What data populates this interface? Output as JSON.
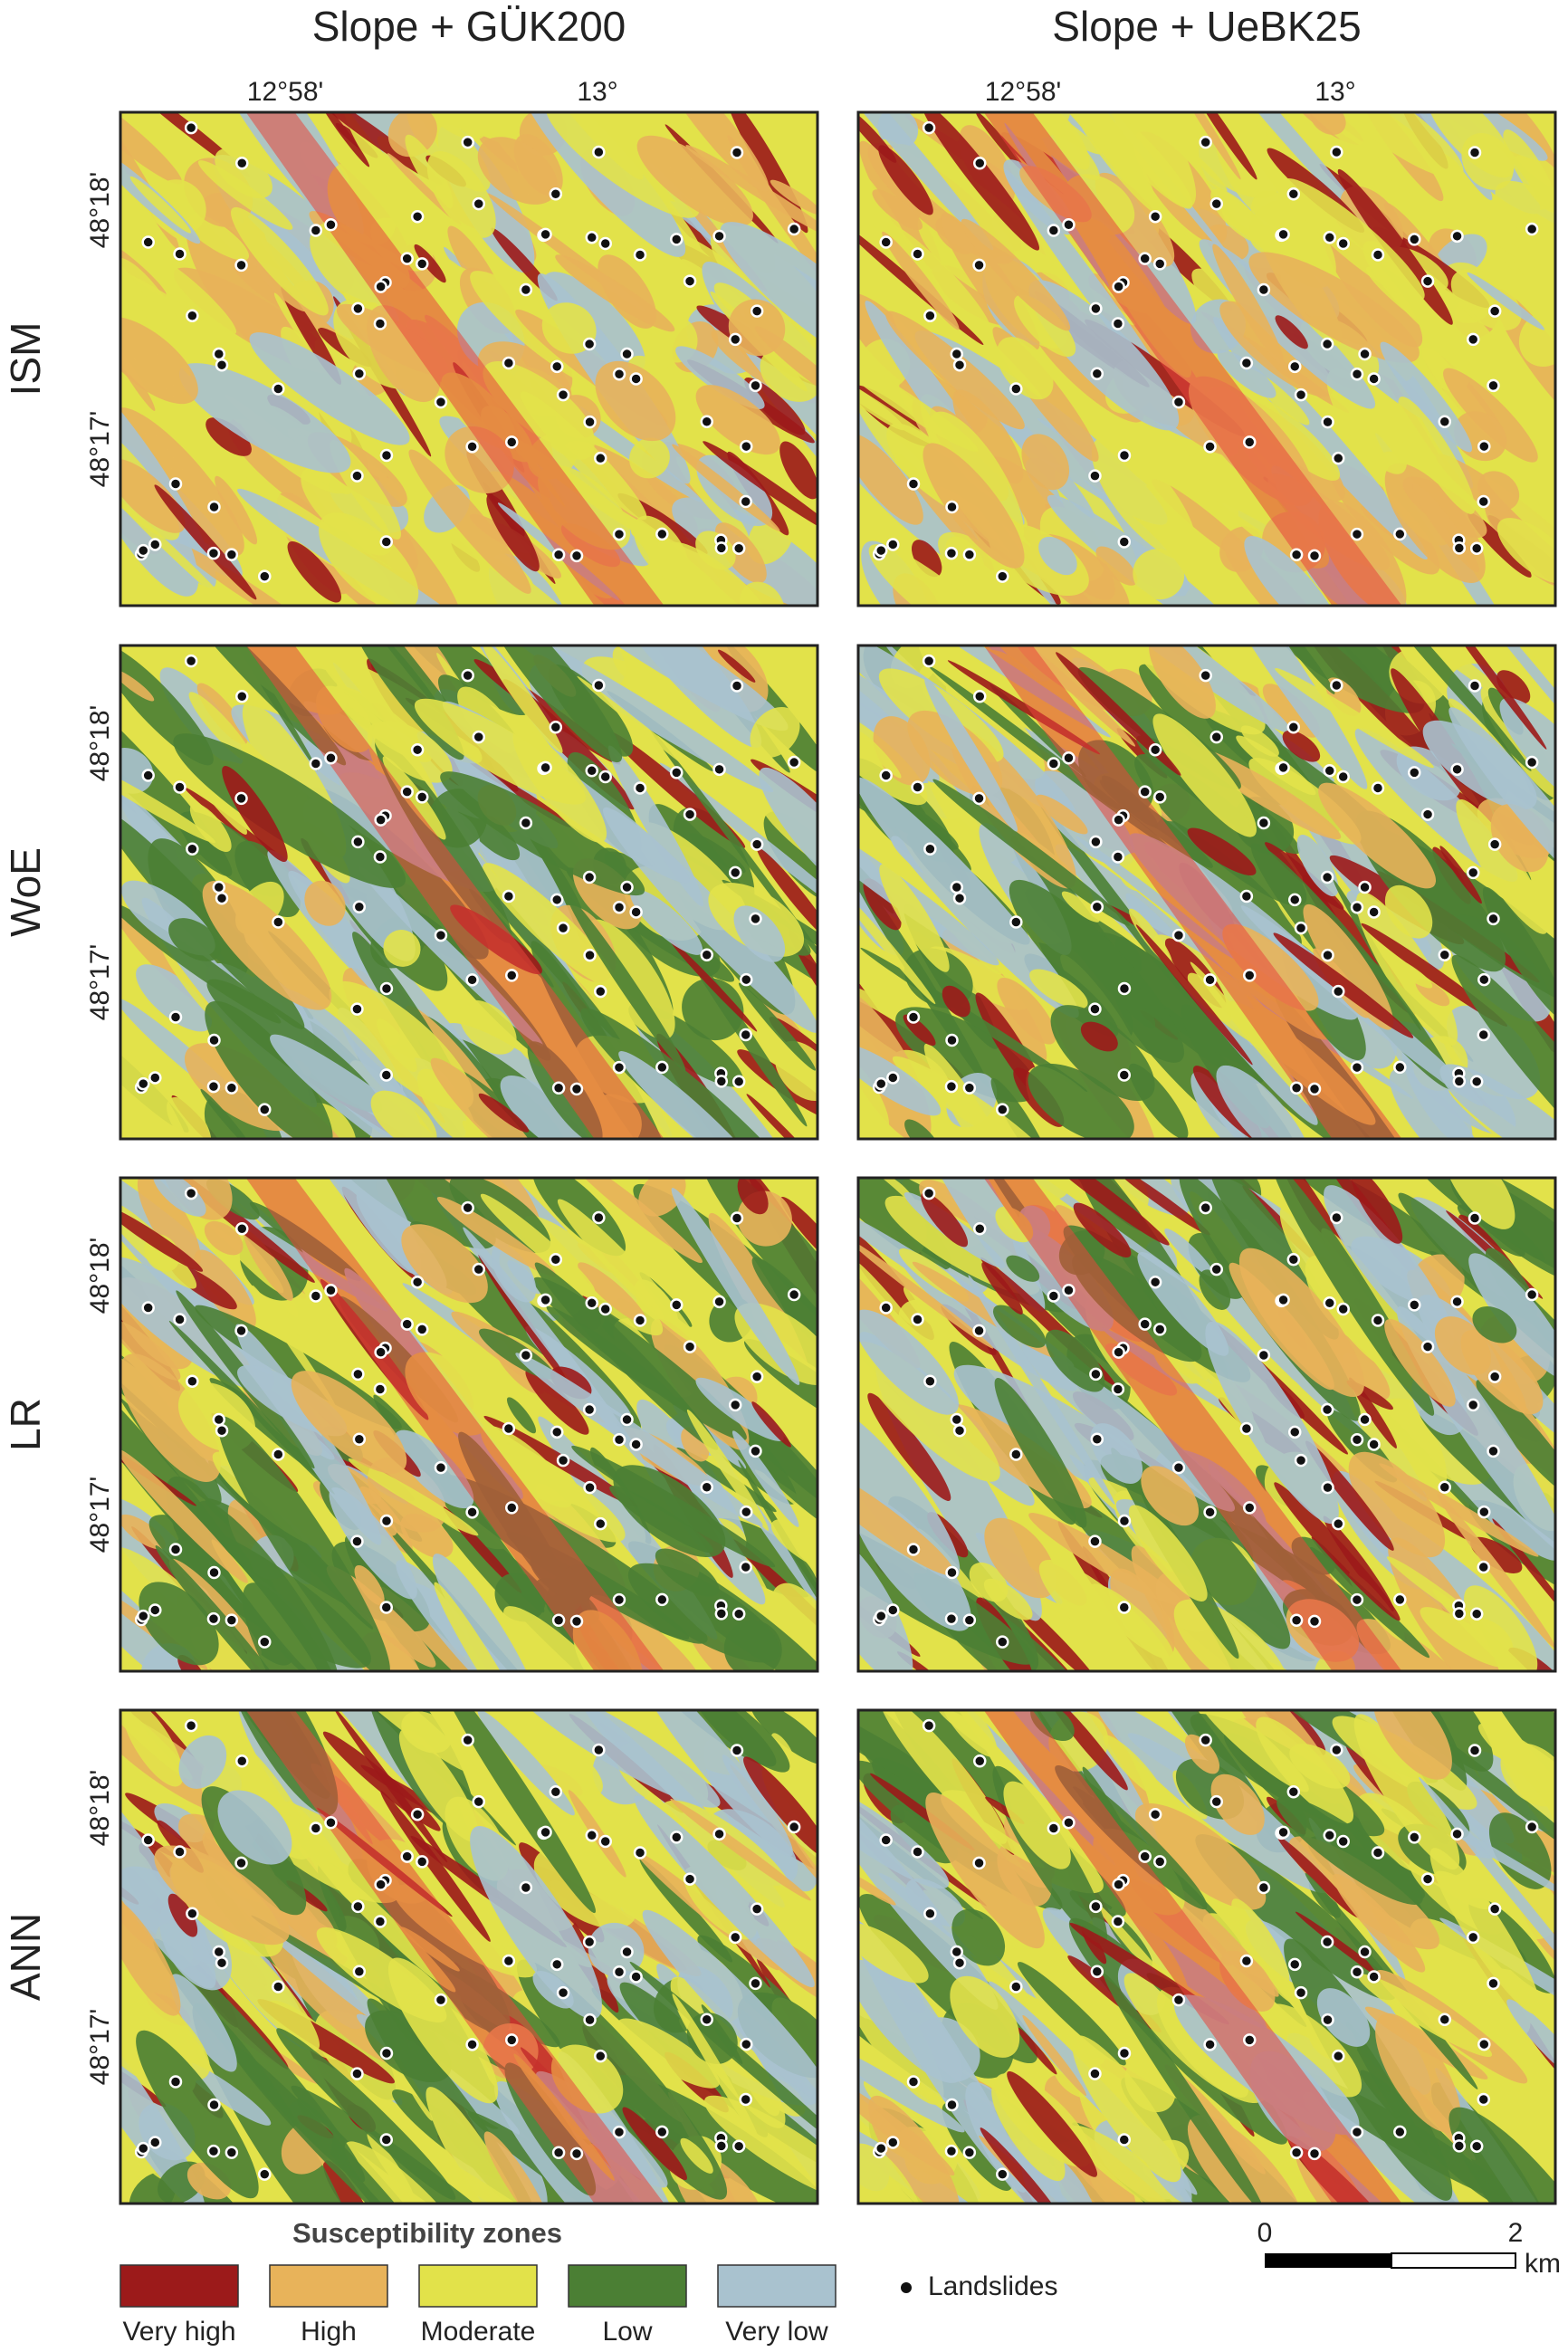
{
  "columns": [
    "Slope + GÜK200",
    "Slope + UeBK25"
  ],
  "rows": [
    "ISM",
    "WoE",
    "LR",
    "ANN"
  ],
  "longitude_ticks": [
    "12°58'",
    "13°"
  ],
  "latitude_ticks": [
    "48°18'",
    "48°17'"
  ],
  "legend": {
    "title": "Susceptibility zones",
    "zones": [
      {
        "label": "Very high",
        "color": "#9c1a1a"
      },
      {
        "label": "High",
        "color": "#e8b35a"
      },
      {
        "label": "Moderate",
        "color": "#e2e24a"
      },
      {
        "label": "Low",
        "color": "#4b7f34"
      },
      {
        "label": "Very low",
        "color": "#a9c2cf"
      }
    ],
    "landslides": "Landslides"
  },
  "scale_bar": {
    "ticks": [
      0,
      2
    ],
    "unit": "km"
  }
}
